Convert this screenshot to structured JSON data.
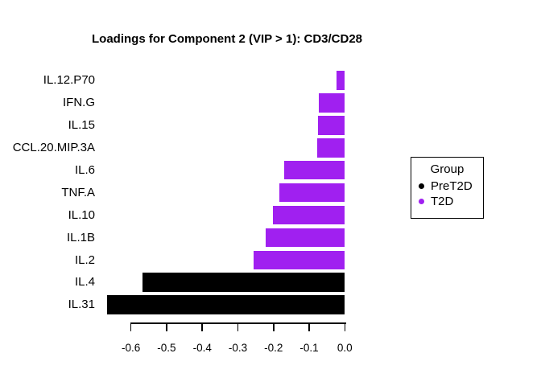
{
  "title": "Loadings for Component 2 (VIP > 1): CD3/CD28",
  "chart_data": {
    "type": "bar",
    "orientation": "horizontal",
    "title": "Loadings for Component 2 (VIP > 1): CD3/CD28",
    "categories": [
      "IL.12.P70",
      "IFN.G",
      "IL.15",
      "CCL.20.MIP.3A",
      "IL.6",
      "TNF.A",
      "IL.10",
      "IL.1B",
      "IL.2",
      "IL.4",
      "IL.31"
    ],
    "values": [
      -0.024,
      -0.072,
      -0.075,
      -0.078,
      -0.169,
      -0.184,
      -0.202,
      -0.222,
      -0.255,
      -0.568,
      -0.666
    ],
    "groups": [
      "T2D",
      "T2D",
      "T2D",
      "T2D",
      "T2D",
      "T2D",
      "T2D",
      "T2D",
      "T2D",
      "PreT2D",
      "PreT2D"
    ],
    "group_colors": {
      "PreT2D": "#000000",
      "T2D": "#A020F0"
    },
    "x_ticks": [
      -0.6,
      -0.5,
      -0.4,
      -0.3,
      -0.2,
      -0.1,
      0.0
    ],
    "x_tick_labels": [
      "-0.6",
      "-0.5",
      "-0.4",
      "-0.3",
      "-0.2",
      "-0.1",
      "0.0"
    ],
    "x_axis_range_shown": [
      -0.6,
      0.0
    ],
    "grid": false,
    "xlabel": "",
    "ylabel": "",
    "legend_position": "right"
  },
  "legend": {
    "title": "Group",
    "entries": [
      {
        "label": "PreT2D",
        "color": "#000000"
      },
      {
        "label": "T2D",
        "color": "#A020F0"
      }
    ]
  }
}
